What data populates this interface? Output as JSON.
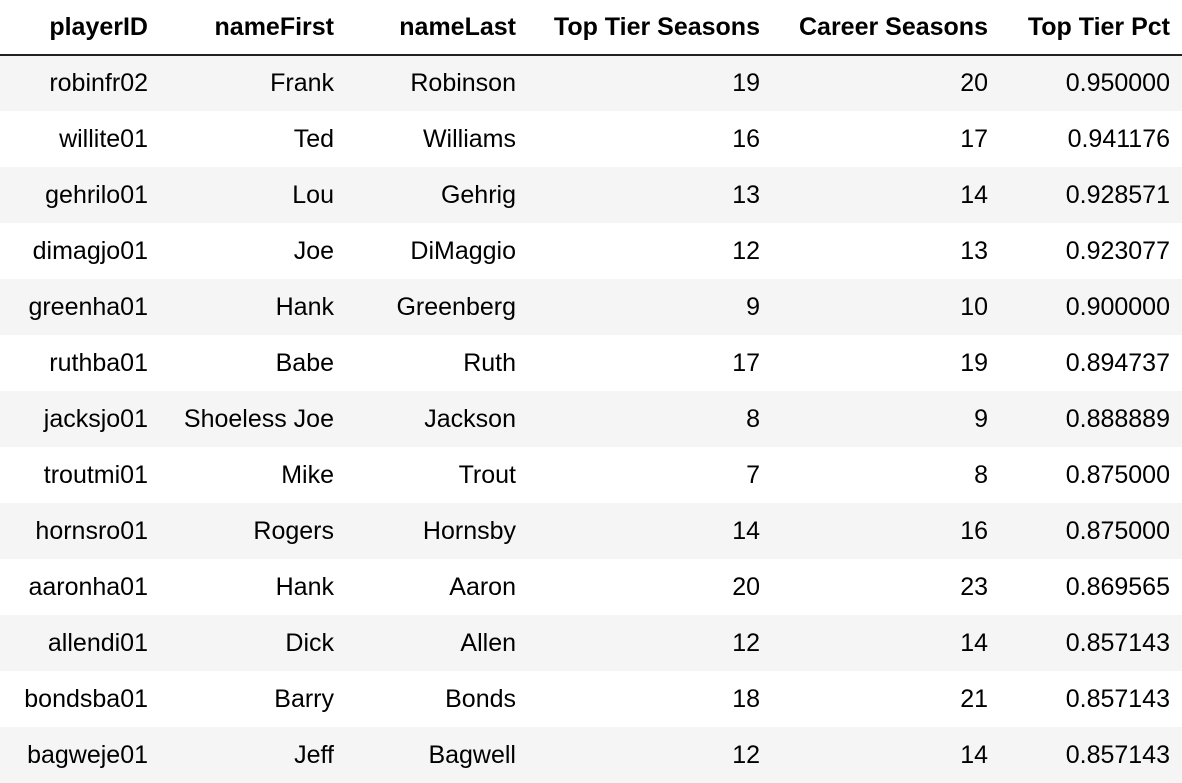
{
  "table": {
    "columns": [
      "playerID",
      "nameFirst",
      "nameLast",
      "Top Tier Seasons",
      "Career Seasons",
      "Top Tier Pct"
    ],
    "rows": [
      [
        "robinfr02",
        "Frank",
        "Robinson",
        "19",
        "20",
        "0.950000"
      ],
      [
        "willite01",
        "Ted",
        "Williams",
        "16",
        "17",
        "0.941176"
      ],
      [
        "gehrilo01",
        "Lou",
        "Gehrig",
        "13",
        "14",
        "0.928571"
      ],
      [
        "dimagjo01",
        "Joe",
        "DiMaggio",
        "12",
        "13",
        "0.923077"
      ],
      [
        "greenha01",
        "Hank",
        "Greenberg",
        "9",
        "10",
        "0.900000"
      ],
      [
        "ruthba01",
        "Babe",
        "Ruth",
        "17",
        "19",
        "0.894737"
      ],
      [
        "jacksjo01",
        "Shoeless Joe",
        "Jackson",
        "8",
        "9",
        "0.888889"
      ],
      [
        "troutmi01",
        "Mike",
        "Trout",
        "7",
        "8",
        "0.875000"
      ],
      [
        "hornsro01",
        "Rogers",
        "Hornsby",
        "14",
        "16",
        "0.875000"
      ],
      [
        "aaronha01",
        "Hank",
        "Aaron",
        "20",
        "23",
        "0.869565"
      ],
      [
        "allendi01",
        "Dick",
        "Allen",
        "12",
        "14",
        "0.857143"
      ],
      [
        "bondsba01",
        "Barry",
        "Bonds",
        "18",
        "21",
        "0.857143"
      ],
      [
        "bagweje01",
        "Jeff",
        "Bagwell",
        "12",
        "14",
        "0.857143"
      ]
    ]
  }
}
